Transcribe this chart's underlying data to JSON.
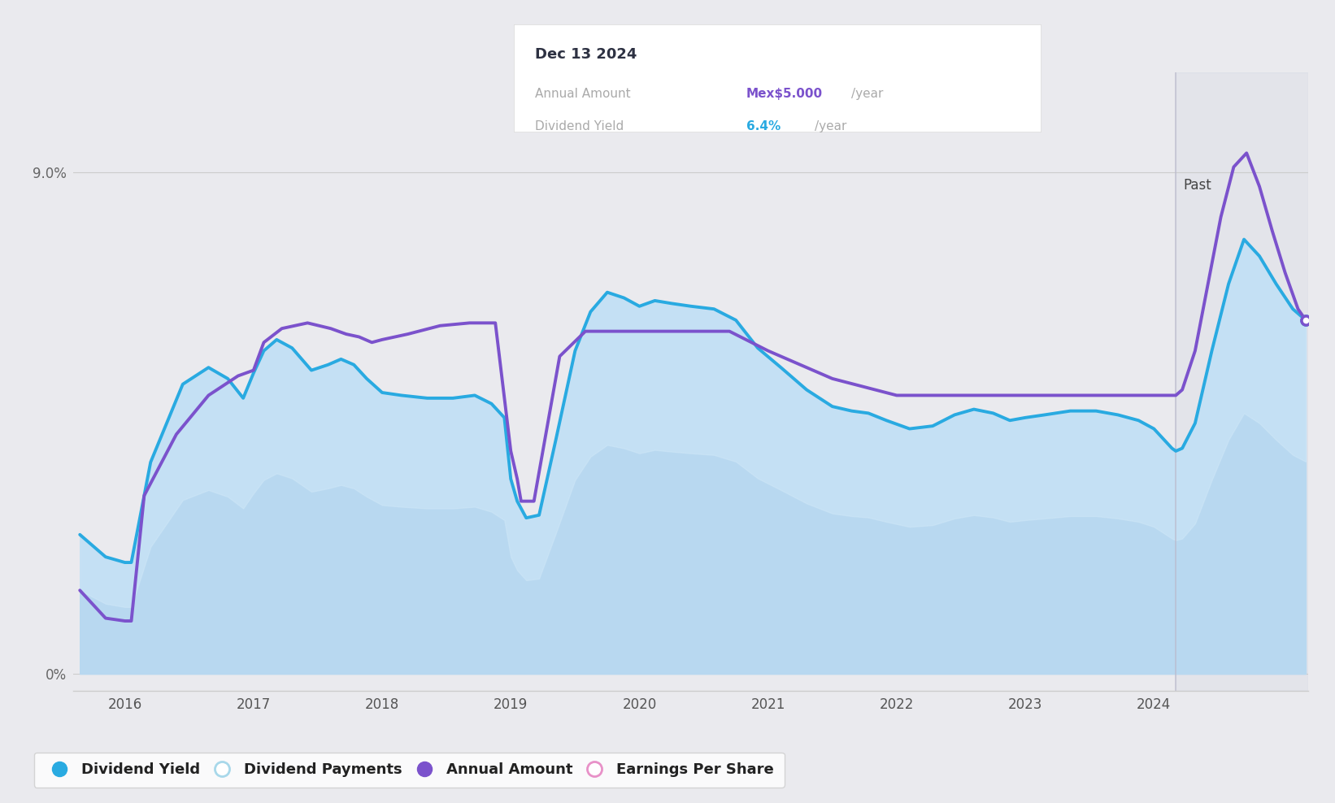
{
  "bg_color": "#eaeaee",
  "fill_color_top": "#c5ddf5",
  "fill_color_bottom": "#ddeeff",
  "blue_line_color": "#29aae1",
  "purple_line_color": "#7b52cc",
  "x_min": 2015.6,
  "x_max": 2025.2,
  "y_min": -0.3,
  "y_max": 10.8,
  "divider_x": 2024.17,
  "tooltip_title": "Dec 13 2024",
  "tooltip_label1": "Annual Amount",
  "tooltip_value1": "Mex$5.000",
  "tooltip_unit1": "/year",
  "tooltip_label2": "Dividend Yield",
  "tooltip_value2": "6.4%",
  "tooltip_unit2": "/year",
  "tooltip_purple": "#7b52cc",
  "tooltip_blue": "#29aae1",
  "past_label": "Past",
  "legend": [
    "Dividend Yield",
    "Dividend Payments",
    "Annual Amount",
    "Earnings Per Share"
  ],
  "legend_colors": [
    "#29aae1",
    "#a8d8ea",
    "#7b52cc",
    "#e891c8"
  ],
  "legend_filled": [
    true,
    false,
    true,
    false
  ],
  "blue_x": [
    2015.65,
    2015.85,
    2016.0,
    2016.05,
    2016.2,
    2016.45,
    2016.65,
    2016.8,
    2016.92,
    2017.0,
    2017.08,
    2017.18,
    2017.3,
    2017.45,
    2017.58,
    2017.68,
    2017.78,
    2017.88,
    2018.0,
    2018.15,
    2018.35,
    2018.55,
    2018.72,
    2018.85,
    2018.95,
    2019.0,
    2019.05,
    2019.12,
    2019.22,
    2019.35,
    2019.5,
    2019.62,
    2019.75,
    2019.88,
    2020.0,
    2020.12,
    2020.25,
    2020.4,
    2020.58,
    2020.75,
    2020.92,
    2021.1,
    2021.3,
    2021.5,
    2021.65,
    2021.78,
    2021.92,
    2022.1,
    2022.28,
    2022.45,
    2022.6,
    2022.75,
    2022.88,
    2023.0,
    2023.15,
    2023.35,
    2023.55,
    2023.72,
    2023.88,
    2024.0,
    2024.08,
    2024.14,
    2024.17,
    2024.22,
    2024.32,
    2024.45,
    2024.58,
    2024.7,
    2024.82,
    2024.95,
    2025.08,
    2025.18
  ],
  "blue_y": [
    2.5,
    2.1,
    2.0,
    2.0,
    3.8,
    5.2,
    5.5,
    5.3,
    4.95,
    5.4,
    5.8,
    6.0,
    5.85,
    5.45,
    5.55,
    5.65,
    5.55,
    5.3,
    5.05,
    5.0,
    4.95,
    4.95,
    5.0,
    4.85,
    4.6,
    3.5,
    3.1,
    2.8,
    2.85,
    4.2,
    5.8,
    6.5,
    6.85,
    6.75,
    6.6,
    6.7,
    6.65,
    6.6,
    6.55,
    6.35,
    5.85,
    5.5,
    5.1,
    4.8,
    4.72,
    4.68,
    4.55,
    4.4,
    4.45,
    4.65,
    4.75,
    4.68,
    4.55,
    4.6,
    4.65,
    4.72,
    4.72,
    4.65,
    4.55,
    4.4,
    4.2,
    4.05,
    4.0,
    4.05,
    4.5,
    5.8,
    7.0,
    7.8,
    7.5,
    7.0,
    6.55,
    6.35
  ],
  "purple_x": [
    2015.65,
    2015.85,
    2016.0,
    2016.05,
    2016.15,
    2016.4,
    2016.65,
    2016.88,
    2017.0,
    2017.08,
    2017.22,
    2017.42,
    2017.6,
    2017.72,
    2017.82,
    2017.92,
    2018.0,
    2018.2,
    2018.45,
    2018.68,
    2018.88,
    2019.0,
    2019.05,
    2019.08,
    2019.18,
    2019.38,
    2019.58,
    2019.78,
    2019.95,
    2020.1,
    2020.4,
    2020.7,
    2021.0,
    2021.5,
    2022.0,
    2022.5,
    2023.0,
    2023.5,
    2023.88,
    2024.0,
    2024.05,
    2024.1,
    2024.17,
    2024.22,
    2024.32,
    2024.42,
    2024.52,
    2024.62,
    2024.72,
    2024.82,
    2024.92,
    2025.02,
    2025.12,
    2025.18
  ],
  "purple_y": [
    1.5,
    1.0,
    0.95,
    0.95,
    3.2,
    4.3,
    5.0,
    5.35,
    5.45,
    5.95,
    6.2,
    6.3,
    6.2,
    6.1,
    6.05,
    5.95,
    6.0,
    6.1,
    6.25,
    6.3,
    6.3,
    4.0,
    3.5,
    3.1,
    3.1,
    5.7,
    6.15,
    6.15,
    6.15,
    6.15,
    6.15,
    6.15,
    5.8,
    5.3,
    5.0,
    5.0,
    5.0,
    5.0,
    5.0,
    5.0,
    5.0,
    5.0,
    5.0,
    5.1,
    5.8,
    7.0,
    8.2,
    9.1,
    9.35,
    8.75,
    7.95,
    7.2,
    6.55,
    6.35
  ]
}
